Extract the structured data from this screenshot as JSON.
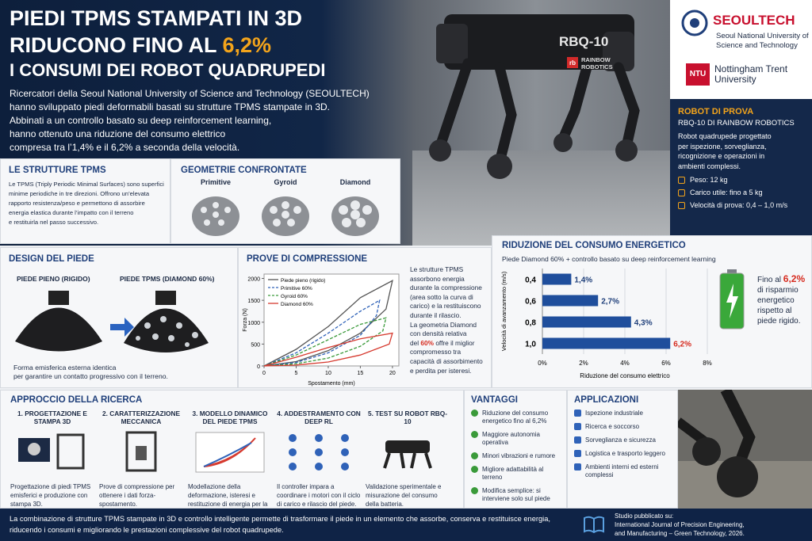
{
  "header": {
    "title_line1": "PIEDI TPMS STAMPATI IN 3D",
    "title_line2": "RIDUCONO FINO AL",
    "title_highlight": "6,2%",
    "title_line3": "I CONSUMI DEI ROBOT QUADRUPEDI",
    "intro": [
      "Ricercatori della Seoul National University of Science and Technology (SEOULTECH)",
      "hanno sviluppato piedi deformabili basati su strutture TPMS stampate in 3D.",
      "Abbinati a un controllo basato su deep reinforcement learning,",
      "hanno ottenuto una riduzione del consumo elettrico",
      "compresa tra l’1,4% e il 6,2% a seconda della velocità."
    ]
  },
  "robot_image": {
    "model": "RBQ-10",
    "badge": "rb",
    "brand": [
      "RAINBOW",
      "ROBOTICS"
    ]
  },
  "logos": {
    "seoultech_name": "SEOULTECH",
    "seoultech_full": [
      "Seoul National University of",
      "Science and Technology"
    ],
    "ntu_badge": "NTU",
    "ntu_name": [
      "Nottingham Trent",
      "University"
    ]
  },
  "test_robot": {
    "title": "ROBOT DI PROVA",
    "subtitle": "RBQ-10 DI RAINBOW ROBOTICS",
    "description": [
      "Robot quadrupede progettato",
      "per ispezione, sorveglianza,",
      "ricognizione e operazioni in",
      "ambienti complessi."
    ],
    "specs": [
      "Peso: 12 kg",
      "Carico utile: fino a 5 kg",
      "Velocità di prova: 0,4 – 1,0 m/s"
    ]
  },
  "tpms": {
    "title": "LE STRUTTURE TPMS",
    "text": [
      "Le TPMS (Triply Periodic Minimal Surfaces) sono superfici",
      "minime periodiche in tre direzioni. Offrono un’elevata",
      "rapporto resistenza/peso e permettono di assorbire",
      "energia elastica durante l’impatto con il terreno",
      "e restituirla nel passo successivo."
    ]
  },
  "geometries": {
    "title": "GEOMETRIE CONFRONTATE",
    "items": [
      "Primitive",
      "Gyroid",
      "Diamond"
    ]
  },
  "foot_design": {
    "title": "DESIGN DEL PIEDE",
    "rigid": "PIEDE PIENO (RIGIDO)",
    "tpms": "PIEDE TPMS (DIAMOND 60%)",
    "caption": [
      "Forma emisferica esterna identica",
      "per garantire un contatto progressivo con il terreno."
    ]
  },
  "compression": {
    "title": "PROVE DI COMPRESSIONE",
    "notes": [
      "Le strutture TPMS",
      "assorbono energia",
      "durante la compressione",
      "(area sotto la curva di",
      "carico) e la restituiscono",
      "durante il rilascio.",
      "La geometria Diamond",
      "con densità relativa"
    ],
    "notes_mid": [
      "del",
      "60%",
      "offre il miglior"
    ],
    "notes_end": [
      "compromesso tra",
      "capacità di assorbimento",
      "e perdita per isteresi."
    ]
  },
  "energy": {
    "title": "RIDUZIONE DEL CONSUMO ENERGETICO",
    "subtitle": "Piede Diamond 60% + controllo basato su deep reinforcement learning",
    "side_note": {
      "lead": "Fino al",
      "value": "6,2%",
      "rest": [
        "di risparmio",
        "energetico",
        "rispetto al",
        "piede rigido."
      ]
    }
  },
  "chart_data": [
    {
      "type": "line",
      "xlabel": "Spostamento (mm)",
      "ylabel": "Forza (N)",
      "xlim": [
        0,
        21
      ],
      "ylim": [
        0,
        2100
      ],
      "xticks": [
        0,
        5,
        10,
        15,
        20
      ],
      "yticks": [
        0,
        500,
        1000,
        1500,
        2000
      ],
      "series": [
        {
          "name": "Piede pieno (rigido)",
          "color": "#555555",
          "dashed": false,
          "x": [
            0,
            5,
            10,
            15,
            20,
            19,
            15,
            10,
            5,
            0
          ],
          "values": [
            0,
            380,
            900,
            1560,
            1950,
            1300,
            750,
            350,
            100,
            0
          ]
        },
        {
          "name": "Primitive 60%",
          "color": "#2f62b8",
          "dashed": true,
          "x": [
            0,
            5,
            10,
            15,
            18,
            17.5,
            15,
            10,
            5,
            0
          ],
          "values": [
            0,
            300,
            750,
            1250,
            1500,
            1150,
            700,
            300,
            80,
            0
          ]
        },
        {
          "name": "Gyroid 60%",
          "color": "#3a9a3a",
          "dashed": true,
          "x": [
            0,
            5,
            10,
            15,
            19,
            18.5,
            15,
            10,
            5,
            0
          ],
          "values": [
            0,
            250,
            600,
            950,
            1100,
            800,
            450,
            180,
            50,
            0
          ]
        },
        {
          "name": "Diamond 60%",
          "color": "#d63a2f",
          "dashed": false,
          "x": [
            0,
            5,
            10,
            15,
            20,
            19.5,
            15,
            10,
            5,
            0
          ],
          "values": [
            0,
            200,
            420,
            620,
            750,
            500,
            250,
            90,
            20,
            0
          ]
        }
      ]
    },
    {
      "type": "hbar",
      "xlabel": "Riduzione del consumo elettrico",
      "ylabel": "Velocità di avanzamento (m/s)",
      "categories": [
        "0,4",
        "0,6",
        "0,8",
        "1,0"
      ],
      "values": [
        1.4,
        2.7,
        4.3,
        6.2
      ],
      "value_labels": [
        "1,4%",
        "2,7%",
        "4,3%",
        "6,2%"
      ],
      "value_label_colors": [
        "#1f3f7a",
        "#1f3f7a",
        "#1f3f7a",
        "#d62b1f"
      ],
      "color": "#1f4e9c",
      "xlim": [
        0,
        8
      ],
      "xticks": [
        {
          "value": 0,
          "label": "0%"
        },
        {
          "value": 2,
          "label": "2%"
        },
        {
          "value": 4,
          "label": "4%"
        },
        {
          "value": 6,
          "label": "6%"
        },
        {
          "value": 8,
          "label": "8%"
        }
      ],
      "grid": true
    }
  ],
  "approach": {
    "title": "APPROCCIO DELLA RICERCA",
    "steps": [
      {
        "title": "1. PROGETTAZIONE E STAMPA 3D",
        "desc": "Progettazione di piedi TPMS emisferici e produzione con stampa 3D."
      },
      {
        "title": "2. CARATTERIZZAZIONE MECCANICA",
        "desc": "Prove di compressione per ottenere i dati forza-spostamento."
      },
      {
        "title": "3. MODELLO DINAMICO DEL PIEDE TPMS",
        "desc": "Modellazione della deformazione, isteresi e restituzione di energia per la simulazione."
      },
      {
        "title": "4. ADDESTRAMENTO CON DEEP RL",
        "desc": "Il controller impara a coordinare i motori con il ciclo di carico e rilascio del piede."
      },
      {
        "title": "5. TEST SU ROBOT RBQ-10",
        "desc": "Validazione sperimentale e misurazione del consumo della batteria."
      }
    ]
  },
  "advantages": {
    "title": "VANTAGGI",
    "items": [
      "Riduzione del consumo energetico fino al 6,2%",
      "Maggiore autonomia operativa",
      "Minori vibrazioni e rumore",
      "Migliore adattabilità al terreno",
      "Modifica semplice: si interviene solo sul piede"
    ]
  },
  "applications": {
    "title": "APPLICAZIONI",
    "items": [
      "Ispezione industriale",
      "Ricerca e soccorso",
      "Sorveglianza e sicurezza",
      "Logistica e trasporto leggero",
      "Ambienti interni ed esterni complessi"
    ]
  },
  "footer": {
    "text": [
      "La combinazione di strutture TPMS stampate in 3D e controllo intelligente permette di trasformare il piede in un elemento che assorbe, conserva e restituisce energia,",
      "riducendo i consumi e migliorando le prestazioni complessive del robot quadrupede."
    ],
    "study": [
      "Studio pubblicato su:",
      "International Journal of Precision Engineering,",
      "and Manufacturing – Green Technology, 2026."
    ]
  }
}
